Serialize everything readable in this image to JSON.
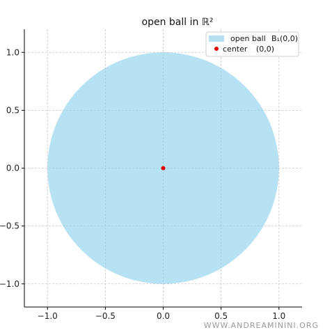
{
  "chart_data": {
    "type": "scatter",
    "title": "open ball in ℝ²",
    "xlabel": "",
    "ylabel": "",
    "xlim": [
      -1.2,
      1.2
    ],
    "ylim": [
      -1.2,
      1.2
    ],
    "grid": true,
    "legend_position": "top-right",
    "x_ticks": [
      -1.0,
      -0.5,
      0.0,
      0.5,
      1.0
    ],
    "x_tick_labels": [
      "−1.0",
      "−0.5",
      "0.0",
      "0.5",
      "1.0"
    ],
    "y_ticks": [
      1.0,
      0.5,
      0.0,
      -0.5,
      -1.0
    ],
    "y_tick_labels": [
      "1.0",
      "0.5",
      "0.0",
      "−0.5",
      "−1.0"
    ],
    "ball": {
      "center": [
        0,
        0
      ],
      "radius": 1.0,
      "color": "#87CEEB",
      "opacity": 0.6
    },
    "points": [
      {
        "x": 0,
        "y": 0,
        "color": "#e00000"
      }
    ],
    "legend": [
      {
        "label": "open ball",
        "annotation": "B₁(0,0)",
        "kind": "patch",
        "color": "#b6dff2"
      },
      {
        "label": "center",
        "annotation": "(0,0)",
        "kind": "point",
        "color": "#e00000"
      }
    ]
  },
  "watermark": "WWW.ANDREAMININI.ORG"
}
